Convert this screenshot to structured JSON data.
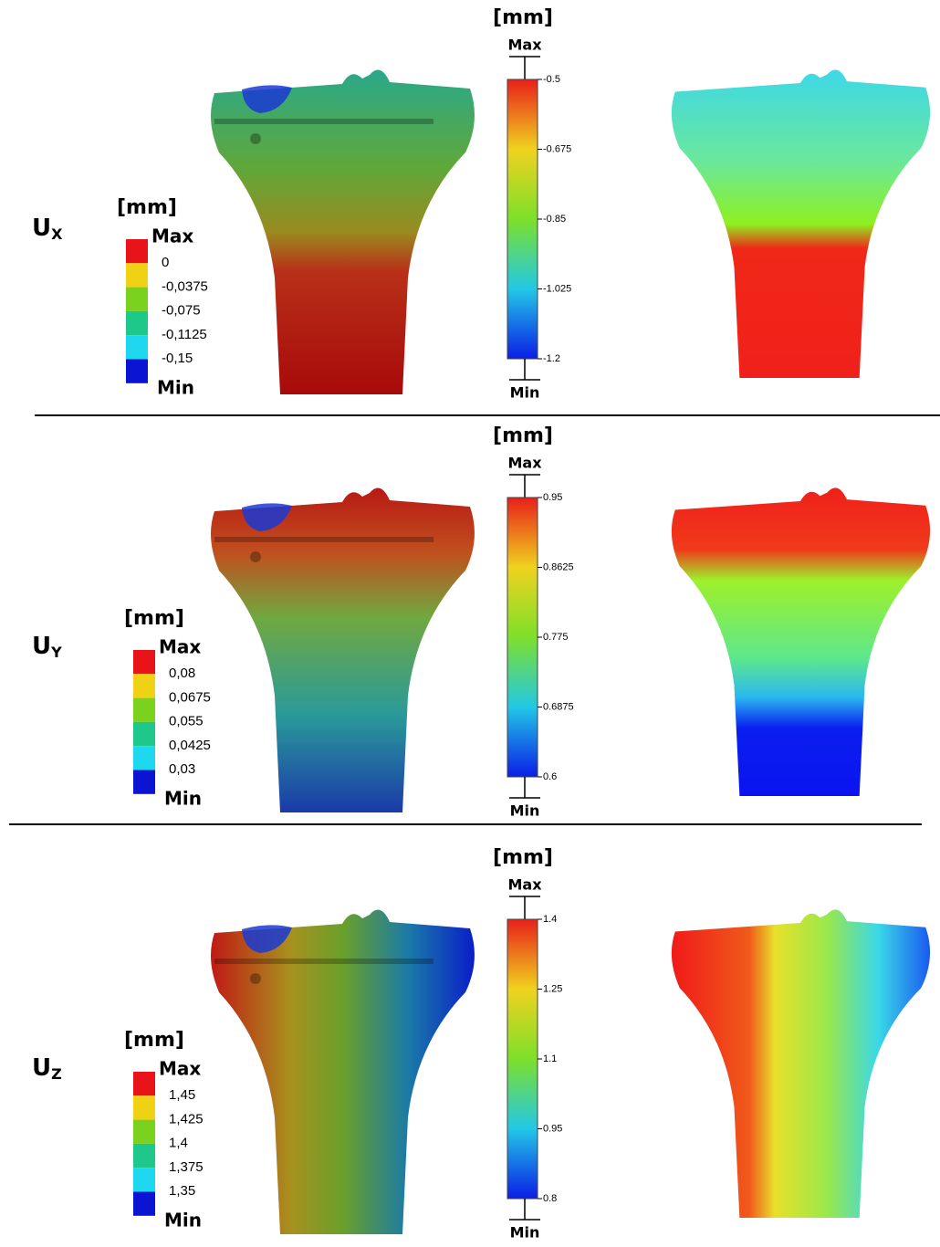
{
  "rows": [
    {
      "symbol": "U",
      "subscript": "X",
      "scale_legend": {
        "unit": "[mm]",
        "max": "Max",
        "levels": [
          "0",
          "-0,0375",
          "-0,075",
          "-0,1125",
          "-0,15"
        ],
        "min": "Min"
      },
      "color_bar": {
        "unit": "[mm]",
        "max": "Max",
        "ticks": [
          "-0.5",
          "-0.675",
          "-0.85",
          "-1.025",
          "-1.2"
        ],
        "min": "Min"
      }
    },
    {
      "symbol": "U",
      "subscript": "Y",
      "scale_legend": {
        "unit": "[mm]",
        "max": "Max",
        "levels": [
          "0,08",
          "0,0675",
          "0,055",
          "0,0425",
          "0,03"
        ],
        "min": "Min"
      },
      "color_bar": {
        "unit": "[mm]",
        "max": "Max",
        "ticks": [
          "0.95",
          "0.8625",
          "0.775",
          "0.6875",
          "0.6"
        ],
        "min": "Min"
      }
    },
    {
      "symbol": "U",
      "subscript": "Z",
      "scale_legend": {
        "unit": "[mm]",
        "max": "Max",
        "levels": [
          "1,45",
          "1,425",
          "1,4",
          "1,375",
          "1,35"
        ],
        "min": "Min"
      },
      "color_bar": {
        "unit": "[mm]",
        "max": "Max",
        "ticks": [
          "1.4",
          "1.25",
          "1.1",
          "0.95",
          "0.8"
        ],
        "min": "Min"
      }
    }
  ]
}
